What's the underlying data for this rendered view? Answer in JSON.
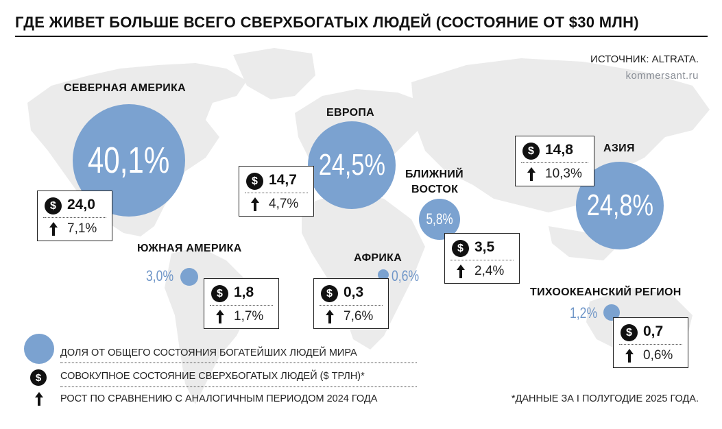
{
  "title": "ГДЕ ЖИВЕТ БОЛЬШЕ ВСЕГО СВЕРХБОГАТЫХ ЛЮДЕЙ (СОСТОЯНИЕ ОТ $30 МЛН)",
  "source": "ИСТОЧНИК: ALTRATA.",
  "site": "kommersant.ru",
  "colors": {
    "bubble": "#7ba2d0",
    "map": "#eaeaea",
    "ink": "#111111"
  },
  "icons": {
    "dollar": "$",
    "growth": "arrow-up-icon"
  },
  "regions": {
    "north_america": {
      "name": "СЕВЕРНАЯ АМЕРИКА",
      "share": "40,1%",
      "wealth": "24,0",
      "growth": "7,1%"
    },
    "europe": {
      "name": "ЕВРОПА",
      "share": "24,5%",
      "wealth": "14,7",
      "growth": "4,7%"
    },
    "middle_east": {
      "name_line1": "БЛИЖНИЙ",
      "name_line2": "ВОСТОК",
      "share": "5,8%",
      "wealth": "3,5",
      "growth": "2,4%"
    },
    "asia": {
      "name": "АЗИЯ",
      "share": "24,8%",
      "wealth": "14,8",
      "growth": "10,3%"
    },
    "south_america": {
      "name": "ЮЖНАЯ АМЕРИКА",
      "share": "3,0%",
      "wealth": "1,8",
      "growth": "1,7%"
    },
    "africa": {
      "name": "АФРИКА",
      "share": "0,6%",
      "wealth": "0,3",
      "growth": "7,6%"
    },
    "pacific": {
      "name": "ТИХООКЕАНСКИЙ РЕГИОН",
      "share": "1,2%",
      "wealth": "0,7",
      "growth": "0,6%"
    }
  },
  "legend": {
    "share": "ДОЛЯ ОТ ОБЩЕГО СОСТОЯНИЯ БОГАТЕЙШИХ ЛЮДЕЙ МИРА",
    "wealth": "СОВОКУПНОЕ СОСТОЯНИЕ СВЕРХБОГАТЫХ ЛЮДЕЙ ($ ТРЛН)*",
    "growth": "РОСТ ПО СРАВНЕНИЮ С АНАЛОГИЧНЫМ ПЕРИОДОМ 2024 ГОДА"
  },
  "footnote": "*ДАННЫЕ ЗА I ПОЛУГОДИЕ 2025 ГОДА."
}
